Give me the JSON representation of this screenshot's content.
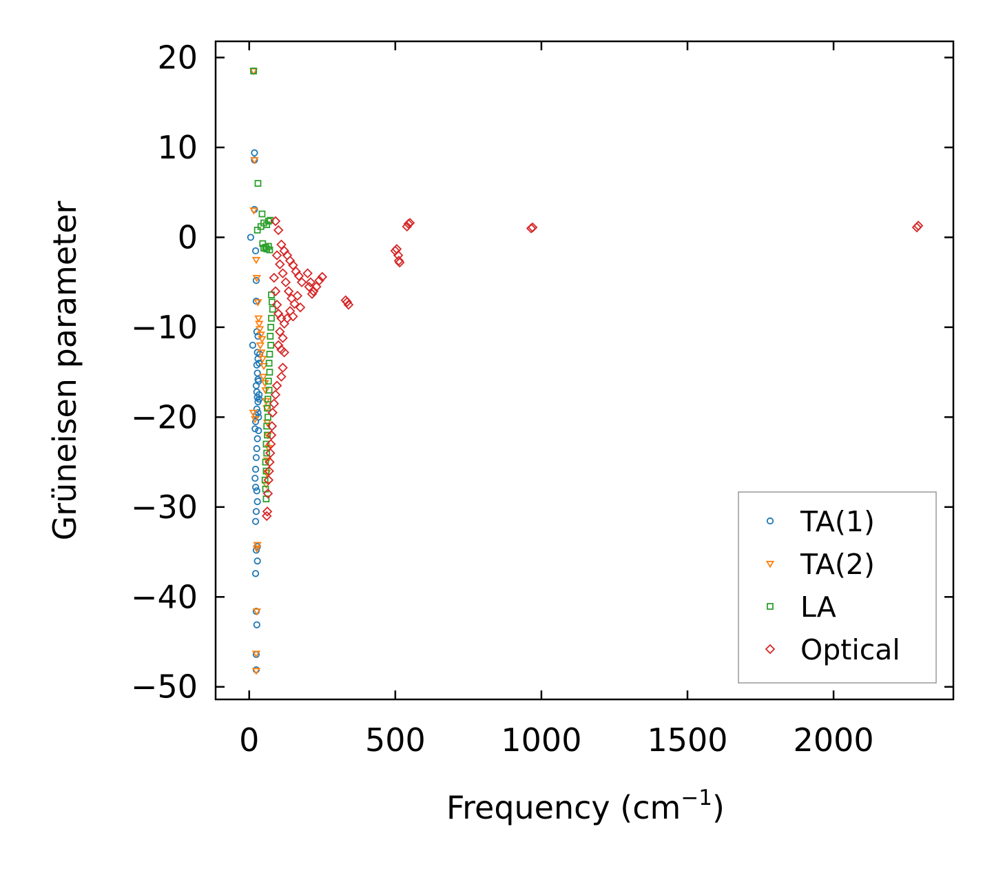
{
  "chart_data": {
    "type": "scatter",
    "title": "",
    "xlabel": "Frequency (cm",
    "xlabel_superscript": "−1",
    "xlabel_suffix": ")",
    "ylabel": "Grüneisen parameter",
    "xlim": [
      -115,
      2410
    ],
    "ylim": [
      -51.4,
      21.8
    ],
    "xticks": [
      0,
      500,
      1000,
      1500,
      2000
    ],
    "xtick_labels": [
      "0",
      "500",
      "1000",
      "1500",
      "2000"
    ],
    "yticks": [
      -50,
      -40,
      -30,
      -20,
      -10,
      0,
      10,
      20
    ],
    "ytick_labels": [
      "−50",
      "−40",
      "−30",
      "−20",
      "−10",
      "0",
      "10",
      "20"
    ],
    "grid": false,
    "legend_position": "bottom-right",
    "series": [
      {
        "name": "TA(1)",
        "marker": "circle",
        "color": "#1f77b4",
        "points": [
          [
            15,
            18.5
          ],
          [
            18,
            9.4
          ],
          [
            18,
            8.6
          ],
          [
            18,
            3.1
          ],
          [
            5,
            0
          ],
          [
            22,
            -1.5
          ],
          [
            24,
            -4.8
          ],
          [
            24,
            -7.1
          ],
          [
            12,
            -12
          ],
          [
            26,
            -10.5
          ],
          [
            28,
            -12.8
          ],
          [
            30,
            -13.5
          ],
          [
            26,
            -14.2
          ],
          [
            28,
            -15.1
          ],
          [
            30,
            -15.8
          ],
          [
            24,
            -16.5
          ],
          [
            26,
            -17.2
          ],
          [
            28,
            -17.8
          ],
          [
            30,
            -18.3
          ],
          [
            26,
            -19.1
          ],
          [
            24,
            -19.8
          ],
          [
            22,
            -20.5
          ],
          [
            20,
            -21.3
          ],
          [
            28,
            -22.4
          ],
          [
            26,
            -23.5
          ],
          [
            24,
            -24.5
          ],
          [
            22,
            -25.8
          ],
          [
            20,
            -26.8
          ],
          [
            22,
            -27.8
          ],
          [
            26,
            -28.2
          ],
          [
            28,
            -29.4
          ],
          [
            24,
            -30.5
          ],
          [
            22,
            -31.6
          ],
          [
            28,
            -34.4
          ],
          [
            24,
            -34.8
          ],
          [
            28,
            -36
          ],
          [
            22,
            -37.4
          ],
          [
            24,
            -41.6
          ],
          [
            26,
            -43.1
          ],
          [
            24,
            -46.4
          ],
          [
            24,
            -48.1
          ],
          [
            32,
            -16
          ],
          [
            34,
            -18
          ],
          [
            32,
            -20
          ],
          [
            34,
            -14
          ],
          [
            30,
            -11
          ],
          [
            36,
            -13
          ],
          [
            34,
            -17.5
          ],
          [
            32,
            -21.5
          ],
          [
            30,
            -19.5
          ]
        ]
      },
      {
        "name": "TA(2)",
        "marker": "triangle-down",
        "color": "#ff7f0e",
        "points": [
          [
            15,
            18.5
          ],
          [
            18,
            8.6
          ],
          [
            16,
            3
          ],
          [
            24,
            -2.5
          ],
          [
            26,
            -4.5
          ],
          [
            30,
            -7.2
          ],
          [
            32,
            -9
          ],
          [
            34,
            -9.6
          ],
          [
            36,
            -10.2
          ],
          [
            40,
            -10.8
          ],
          [
            44,
            -11.3
          ],
          [
            38,
            -12
          ],
          [
            42,
            -12.8
          ],
          [
            46,
            -13.5
          ],
          [
            50,
            -14.3
          ],
          [
            48,
            -15.5
          ],
          [
            54,
            -16.2
          ],
          [
            56,
            -17
          ],
          [
            58,
            -18.2
          ],
          [
            60,
            -19
          ],
          [
            14,
            -19.5
          ],
          [
            20,
            -20.2
          ],
          [
            62,
            -20.6
          ],
          [
            64,
            -22
          ],
          [
            66,
            -23.4
          ],
          [
            62,
            -24.8
          ],
          [
            60,
            -26.2
          ],
          [
            58,
            -27.5
          ],
          [
            28,
            -34.2
          ],
          [
            26,
            -34.6
          ],
          [
            24,
            -46.3
          ],
          [
            24,
            -48.2
          ],
          [
            26,
            -41.6
          ]
        ]
      },
      {
        "name": "LA",
        "marker": "square",
        "color": "#2ca02c",
        "points": [
          [
            15,
            18.5
          ],
          [
            30,
            6
          ],
          [
            28,
            0.8
          ],
          [
            40,
            1.2
          ],
          [
            44,
            2.6
          ],
          [
            50,
            1.6
          ],
          [
            60,
            1.4
          ],
          [
            66,
            1.8
          ],
          [
            72,
            1.9
          ],
          [
            46,
            -0.7
          ],
          [
            50,
            -1.2
          ],
          [
            56,
            -1.1
          ],
          [
            60,
            -1.3
          ],
          [
            66,
            -1
          ],
          [
            70,
            -1.4
          ],
          [
            76,
            -6.4
          ],
          [
            78,
            -7.2
          ],
          [
            80,
            -8
          ],
          [
            76,
            -9
          ],
          [
            74,
            -10
          ],
          [
            72,
            -11
          ],
          [
            74,
            -12
          ],
          [
            70,
            -13
          ],
          [
            68,
            -14
          ],
          [
            70,
            -15
          ],
          [
            66,
            -16
          ],
          [
            68,
            -17
          ],
          [
            64,
            -18
          ],
          [
            62,
            -19
          ],
          [
            64,
            -20
          ],
          [
            60,
            -21
          ],
          [
            62,
            -22
          ],
          [
            58,
            -23
          ],
          [
            60,
            -24
          ],
          [
            56,
            -25
          ],
          [
            58,
            -26
          ],
          [
            54,
            -27
          ],
          [
            56,
            -28
          ],
          [
            58,
            -29.1
          ]
        ]
      },
      {
        "name": "Optical",
        "marker": "diamond",
        "color": "#d62728",
        "points": [
          [
            90,
            1.8
          ],
          [
            100,
            0.8
          ],
          [
            110,
            -0.8
          ],
          [
            120,
            -1.5
          ],
          [
            130,
            -2
          ],
          [
            140,
            -2.6
          ],
          [
            150,
            -3.1
          ],
          [
            160,
            -3.8
          ],
          [
            170,
            -4.3
          ],
          [
            180,
            -5
          ],
          [
            95,
            -2
          ],
          [
            105,
            -3
          ],
          [
            115,
            -4
          ],
          [
            125,
            -5
          ],
          [
            135,
            -6
          ],
          [
            145,
            -6.8
          ],
          [
            155,
            -7.4
          ],
          [
            165,
            -6.5
          ],
          [
            175,
            -7.8
          ],
          [
            85,
            -4.5
          ],
          [
            90,
            -6
          ],
          [
            95,
            -7.5
          ],
          [
            100,
            -8.5
          ],
          [
            110,
            -9
          ],
          [
            120,
            -9.6
          ],
          [
            130,
            -9
          ],
          [
            140,
            -8.2
          ],
          [
            150,
            -8.8
          ],
          [
            105,
            -10.5
          ],
          [
            115,
            -11.2
          ],
          [
            100,
            -12
          ],
          [
            110,
            -12.5
          ],
          [
            120,
            -12.8
          ],
          [
            115,
            -14.5
          ],
          [
            110,
            -15.5
          ],
          [
            95,
            -16.5
          ],
          [
            90,
            -17.5
          ],
          [
            85,
            -18.5
          ],
          [
            80,
            -19.5
          ],
          [
            78,
            -21
          ],
          [
            76,
            -22
          ],
          [
            74,
            -23
          ],
          [
            72,
            -24
          ],
          [
            70,
            -25
          ],
          [
            68,
            -26
          ],
          [
            66,
            -27
          ],
          [
            64,
            -28.5
          ],
          [
            62,
            -30.5
          ],
          [
            60,
            -31
          ],
          [
            200,
            -4
          ],
          [
            210,
            -5
          ],
          [
            220,
            -6
          ],
          [
            230,
            -5.5
          ],
          [
            240,
            -4.8
          ],
          [
            250,
            -4.4
          ],
          [
            205,
            -5.5
          ],
          [
            215,
            -6.3
          ],
          [
            335,
            -7.2
          ],
          [
            340,
            -7.5
          ],
          [
            330,
            -7
          ],
          [
            500,
            -1.5
          ],
          [
            505,
            -1.3
          ],
          [
            510,
            -2
          ],
          [
            512,
            -2.6
          ],
          [
            515,
            -2.8
          ],
          [
            540,
            1.2
          ],
          [
            545,
            1.5
          ],
          [
            550,
            1.6
          ],
          [
            965,
            1
          ],
          [
            970,
            1.1
          ],
          [
            2285,
            1.1
          ],
          [
            2290,
            1.3
          ]
        ]
      }
    ]
  }
}
